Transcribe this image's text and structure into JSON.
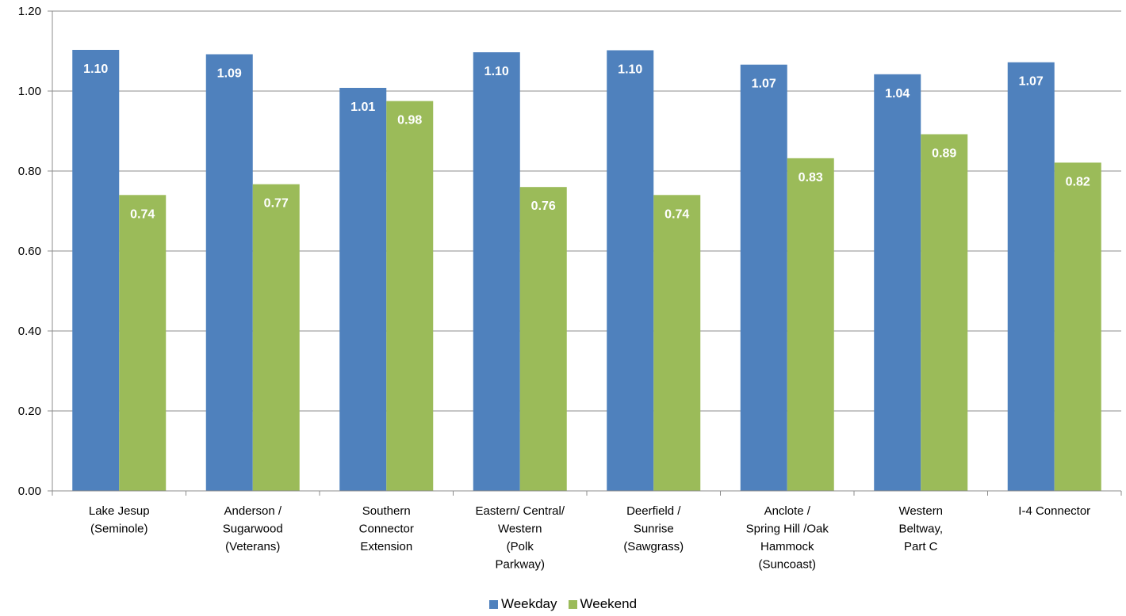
{
  "chart_data": {
    "type": "bar",
    "categories": [
      [
        "Lake Jesup",
        "(Seminole)"
      ],
      [
        "Anderson /",
        "Sugarwood",
        "(Veterans)"
      ],
      [
        "Southern",
        "Connector",
        "Extension"
      ],
      [
        "Eastern/ Central/",
        "Western",
        "(Polk",
        "Parkway)"
      ],
      [
        "Deerfield /",
        "Sunrise",
        "(Sawgrass)"
      ],
      [
        "Anclote /",
        "Spring Hill /Oak",
        "Hammock",
        "(Suncoast)"
      ],
      [
        "Western",
        "Beltway,",
        "Part C"
      ],
      [
        "I-4 Connector"
      ]
    ],
    "series": [
      {
        "name": "Weekday",
        "color": "#4f81bd",
        "values": [
          1.103,
          1.092,
          1.008,
          1.097,
          1.102,
          1.066,
          1.042,
          1.072
        ],
        "labels": [
          "1.10",
          "1.09",
          "1.01",
          "1.10",
          "1.10",
          "1.07",
          "1.04",
          "1.07"
        ]
      },
      {
        "name": "Weekend",
        "color": "#9bbb59",
        "values": [
          0.74,
          0.767,
          0.975,
          0.76,
          0.74,
          0.832,
          0.892,
          0.821
        ],
        "labels": [
          "0.74",
          "0.77",
          "0.98",
          "0.76",
          "0.74",
          "0.83",
          "0.89",
          "0.82"
        ]
      }
    ],
    "ylim": [
      0,
      1.2
    ],
    "yticks": [
      "0.00",
      "0.20",
      "0.40",
      "0.60",
      "0.80",
      "1.00",
      "1.20"
    ],
    "grid": true,
    "legend_position": "bottom",
    "xlabel": "",
    "ylabel": "",
    "title": ""
  }
}
